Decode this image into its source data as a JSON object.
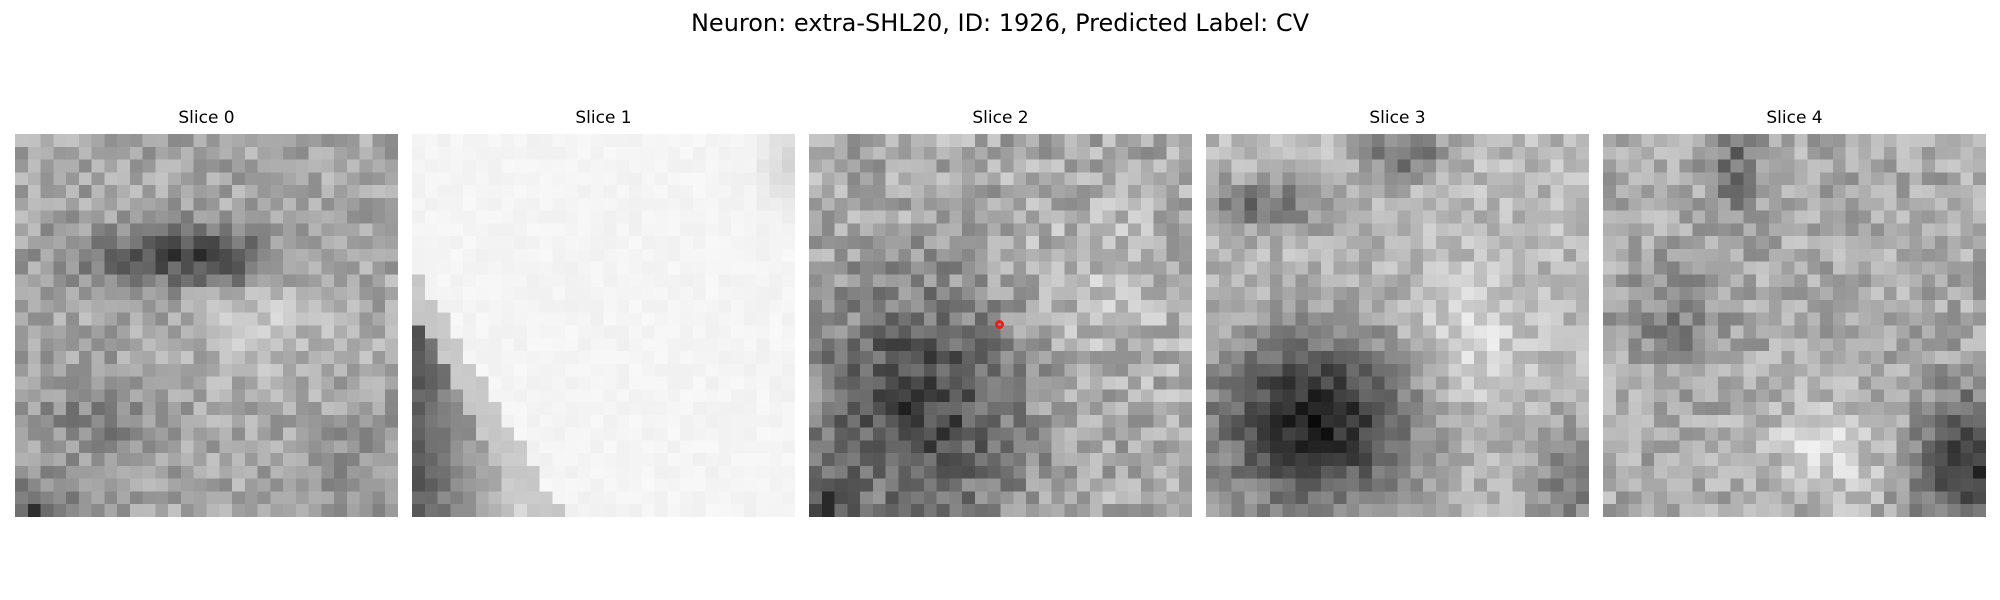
{
  "figure": {
    "title": "Neuron: extra-SHL20, ID: 1926, Predicted Label: CV"
  },
  "slices": [
    {
      "title": "Slice 0"
    },
    {
      "title": "Slice 1"
    },
    {
      "title": "Slice 2"
    },
    {
      "title": "Slice 3"
    },
    {
      "title": "Slice 4"
    }
  ],
  "marker": {
    "slice": "Slice 2",
    "shape": "circle",
    "color": "#e8201c"
  },
  "colormap": "grayscale"
}
